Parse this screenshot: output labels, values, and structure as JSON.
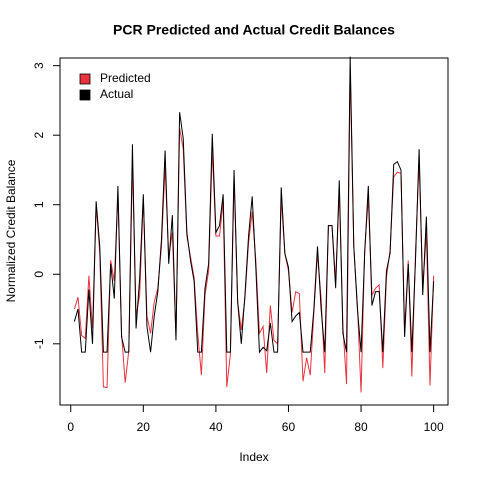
{
  "chart_data": {
    "type": "line",
    "title": "PCR Predicted and Actual Credit Balances",
    "x_label": "Index",
    "y_label": "Normalized Credit Balance",
    "x": [
      1,
      2,
      3,
      4,
      5,
      6,
      7,
      8,
      9,
      10,
      11,
      12,
      13,
      14,
      15,
      16,
      17,
      18,
      19,
      20,
      21,
      22,
      23,
      24,
      25,
      26,
      27,
      28,
      29,
      30,
      31,
      32,
      33,
      34,
      35,
      36,
      37,
      38,
      39,
      40,
      41,
      42,
      43,
      44,
      45,
      46,
      47,
      48,
      49,
      50,
      51,
      52,
      53,
      54,
      55,
      56,
      57,
      58,
      59,
      60,
      61,
      62,
      63,
      64,
      65,
      66,
      67,
      68,
      69,
      70,
      71,
      72,
      73,
      74,
      75,
      76,
      77,
      78,
      79,
      80,
      81,
      82,
      83,
      84,
      85,
      86,
      87,
      88,
      89,
      90,
      91,
      92,
      93,
      94,
      95,
      96,
      97,
      98,
      99,
      100
    ],
    "series": [
      {
        "name": "Predicted",
        "color": "#e8343f",
        "values": [
          -0.5,
          -0.33,
          -0.88,
          -0.92,
          -0.02,
          -0.78,
          1.0,
          0.3,
          -1.62,
          -1.63,
          0.2,
          -0.1,
          1.15,
          -0.85,
          -1.56,
          -1.1,
          1.6,
          -0.6,
          -0.3,
          1.1,
          -0.6,
          -0.85,
          -0.4,
          -0.2,
          0.4,
          1.55,
          0.25,
          0.6,
          -0.9,
          2.1,
          1.8,
          0.55,
          0.25,
          -0.05,
          -0.85,
          -1.45,
          -0.3,
          0.05,
          1.8,
          0.55,
          0.55,
          1.05,
          -1.62,
          -1.15,
          1.4,
          -0.4,
          -0.8,
          -0.35,
          0.45,
          0.9,
          0.2,
          -0.85,
          -0.75,
          -1.42,
          -0.45,
          -0.95,
          -1.0,
          1.1,
          0.3,
          0.05,
          -0.55,
          -0.25,
          -0.28,
          -1.54,
          -1.2,
          -1.45,
          -0.55,
          0.3,
          -0.35,
          -1.42,
          0.7,
          0.7,
          -0.1,
          1.2,
          -0.75,
          -1.58,
          2.95,
          0.4,
          -0.45,
          -1.7,
          0.35,
          1.1,
          -0.3,
          -0.2,
          -0.15,
          -1.35,
          -0.05,
          0.35,
          1.4,
          1.47,
          1.45,
          -0.8,
          0.2,
          -1.47,
          0.3,
          1.65,
          -0.2,
          0.6,
          -1.6,
          -0.02
        ]
      },
      {
        "name": "Actual",
        "color": "#000000",
        "values": [
          -0.68,
          -0.5,
          -1.12,
          -1.12,
          -0.22,
          -1.0,
          1.05,
          0.4,
          -1.12,
          -1.12,
          0.15,
          -0.35,
          1.27,
          -0.9,
          -1.12,
          -1.12,
          1.87,
          -0.78,
          -0.05,
          1.15,
          -0.75,
          -1.12,
          -0.6,
          -0.25,
          0.5,
          1.78,
          0.15,
          0.85,
          -0.95,
          2.33,
          1.95,
          0.6,
          0.2,
          -0.1,
          -1.12,
          -1.12,
          -0.2,
          0.15,
          2.02,
          0.6,
          0.7,
          1.15,
          -1.12,
          -1.12,
          1.5,
          -0.4,
          -1.0,
          -0.3,
          0.55,
          1.12,
          0.1,
          -1.12,
          -1.05,
          -1.1,
          -0.7,
          -1.12,
          -1.12,
          1.25,
          0.3,
          0.1,
          -0.68,
          -0.6,
          -0.55,
          -1.12,
          -1.12,
          -1.12,
          -0.5,
          0.4,
          -0.5,
          -1.12,
          0.7,
          0.7,
          -0.2,
          1.35,
          -0.85,
          -1.12,
          3.13,
          0.4,
          -0.5,
          -1.12,
          0.3,
          1.27,
          -0.45,
          -0.25,
          -0.25,
          -1.12,
          0.05,
          0.3,
          1.58,
          1.62,
          1.5,
          -0.9,
          0.15,
          -1.12,
          0.2,
          1.8,
          -0.3,
          0.83,
          -1.12,
          -0.1
        ]
      }
    ],
    "xlim": [
      -2.96,
      103.96
    ],
    "ylim": [
      -1.88,
      3.11
    ],
    "xticks": [
      0,
      20,
      40,
      60,
      80,
      100
    ],
    "yticks": [
      -1,
      0,
      1,
      2,
      3
    ],
    "legend": "topleft",
    "grid": false
  }
}
